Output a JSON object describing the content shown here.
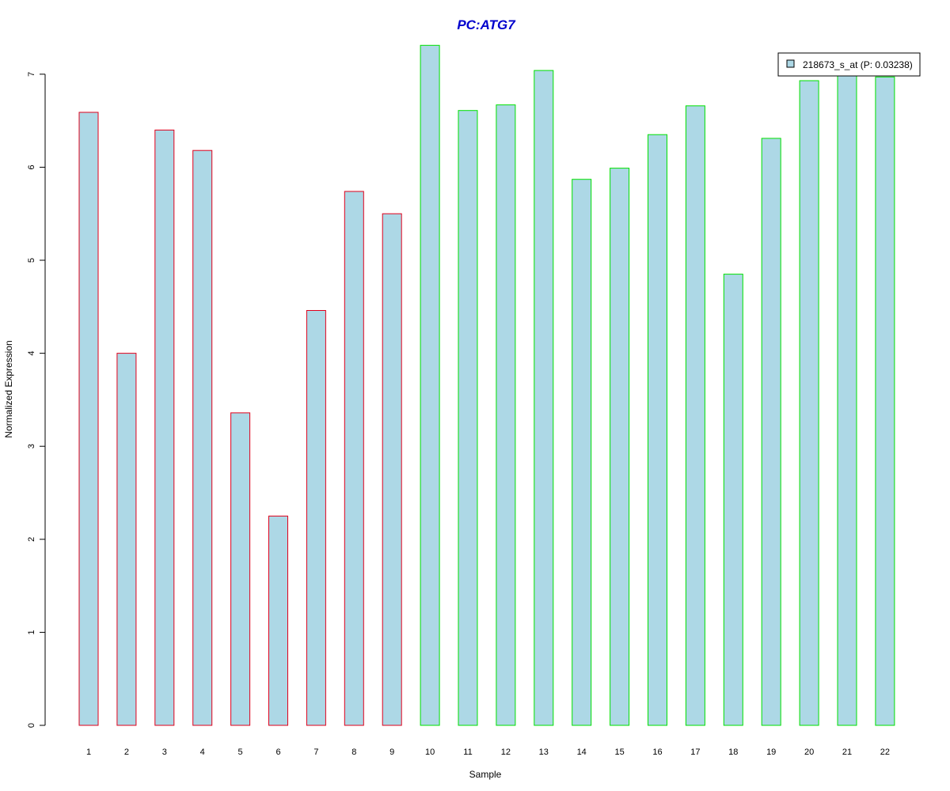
{
  "chart_data": {
    "type": "bar",
    "title": "PC:ATG7",
    "xlabel": "Sample",
    "ylabel": "Normalized Expression",
    "categories": [
      "1",
      "2",
      "3",
      "4",
      "5",
      "6",
      "7",
      "8",
      "9",
      "10",
      "11",
      "12",
      "13",
      "14",
      "15",
      "16",
      "17",
      "18",
      "19",
      "20",
      "21",
      "22"
    ],
    "series": [
      {
        "name": "218673_s_at (P: 0.03238)",
        "values": [
          6.59,
          4.0,
          6.4,
          6.18,
          3.36,
          2.25,
          4.46,
          5.74,
          5.5,
          7.31,
          6.61,
          6.67,
          7.04,
          5.87,
          5.99,
          6.35,
          6.66,
          4.85,
          6.31,
          6.93,
          7.0,
          6.97
        ]
      }
    ],
    "bar_border_colors": [
      "#e0001b",
      "#e0001b",
      "#e0001b",
      "#e0001b",
      "#e0001b",
      "#e0001b",
      "#e0001b",
      "#e0001b",
      "#e0001b",
      "#00e000",
      "#00e000",
      "#00e000",
      "#00e000",
      "#00e000",
      "#00e000",
      "#00e000",
      "#00e000",
      "#00e000",
      "#00e000",
      "#00e000",
      "#00e000",
      "#00e000"
    ],
    "bar_fill_color": "#add8e6",
    "title_color": "#0000cd",
    "yticks": [
      0,
      1,
      2,
      3,
      4,
      5,
      6,
      7
    ],
    "ylim": [
      0,
      7.31
    ],
    "grid": false,
    "legend_position": "top-right"
  }
}
